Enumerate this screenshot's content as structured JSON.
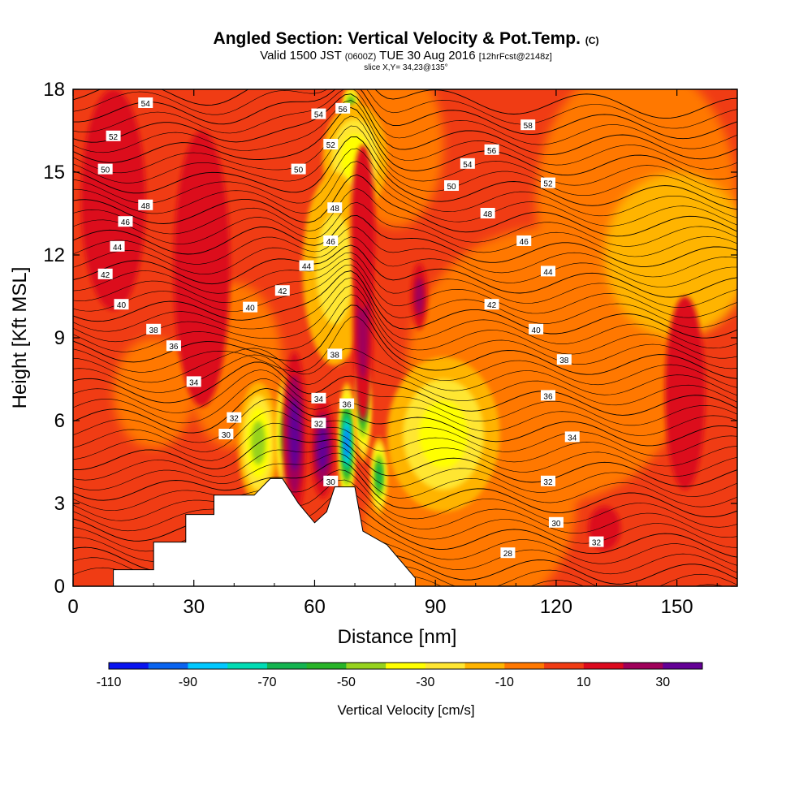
{
  "header": {
    "title": "Angled Section: Vertical Velocity & Pot.Temp.",
    "title_tag": "(C)",
    "valid_main_a": "Valid 1500 JST",
    "valid_small_a": "(0600Z)",
    "valid_main_b": "TUE 30 Aug 2016",
    "valid_small_b": "[12hrFcst@2148z]",
    "slice": "slice X,Y= 34,23@135°"
  },
  "chart_data": {
    "type": "heatmap",
    "xlabel": "Distance [nm]",
    "ylabel": "Height [Kft MSL]",
    "xlim": [
      0,
      165
    ],
    "ylim": [
      0,
      18
    ],
    "x_ticks": [
      0,
      30,
      60,
      90,
      120,
      150
    ],
    "x_tick_labels": [
      "0",
      "30",
      "60",
      "90",
      "120",
      "150"
    ],
    "y_ticks": [
      0,
      3,
      6,
      9,
      12,
      15,
      18
    ],
    "y_tick_labels": [
      "0",
      "3",
      "6",
      "9",
      "12",
      "15",
      "18"
    ],
    "colorbar": {
      "label": "Vertical Velocity [cm/s]",
      "levels": [
        -110,
        -100,
        -90,
        -80,
        -70,
        -60,
        -50,
        -40,
        -30,
        -20,
        -10,
        0,
        10,
        20,
        30,
        40
      ],
      "tick_values": [
        -110,
        -90,
        -70,
        -50,
        -30,
        -10,
        10,
        30
      ],
      "tick_labels": [
        "-110",
        "-90",
        "-70",
        "-50",
        "-30",
        "-10",
        "10",
        "30"
      ],
      "colors": [
        "#0a14f0",
        "#0a64f0",
        "#00c8ff",
        "#00dcb4",
        "#14b450",
        "#28b428",
        "#96d21e",
        "#ffff00",
        "#ffe632",
        "#ffb400",
        "#ff7800",
        "#f03c14",
        "#dc0a1e",
        "#a0005a",
        "#640096"
      ]
    },
    "terrain": [
      [
        10,
        0
      ],
      [
        10,
        0.6
      ],
      [
        20,
        0.6
      ],
      [
        20,
        1.6
      ],
      [
        28,
        1.6
      ],
      [
        28,
        2.6
      ],
      [
        35,
        2.6
      ],
      [
        35,
        3.3
      ],
      [
        45,
        3.3
      ],
      [
        49,
        3.9
      ],
      [
        52,
        3.9
      ],
      [
        56,
        3.0
      ],
      [
        60,
        2.3
      ],
      [
        63,
        2.7
      ],
      [
        65,
        3.6
      ],
      [
        70,
        3.6
      ],
      [
        72,
        2.0
      ],
      [
        78,
        1.5
      ],
      [
        85,
        0.3
      ],
      [
        85,
        0
      ]
    ],
    "downdrafts": [
      [
        46,
        5.2,
        5,
        2.2,
        -40
      ],
      [
        53,
        5.5,
        3,
        2.2,
        -50
      ],
      [
        68,
        5.2,
        2,
        2.2,
        -90
      ],
      [
        72,
        6.5,
        2,
        2.0,
        -60
      ],
      [
        76,
        4.0,
        2,
        1.4,
        -60
      ],
      [
        69,
        17.5,
        2,
        0.6,
        -50
      ],
      [
        92,
        5.5,
        14,
        2.8,
        -30
      ],
      [
        70,
        15.5,
        8,
        2.0,
        -30
      ],
      [
        65,
        11.5,
        8,
        3.5,
        -20
      ]
    ],
    "updrafts": [
      [
        32,
        12.5,
        3,
        2.5,
        30
      ],
      [
        32,
        11.5,
        7,
        5,
        10
      ],
      [
        55,
        5.5,
        3,
        3,
        30
      ],
      [
        62,
        5.0,
        3,
        1.8,
        30
      ],
      [
        72,
        9.5,
        2.5,
        3.5,
        20
      ],
      [
        72,
        13,
        3,
        3,
        10
      ],
      [
        86,
        10.5,
        2,
        1.2,
        20
      ],
      [
        10,
        14,
        8,
        4,
        10
      ],
      [
        132,
        2.1,
        4,
        0.8,
        10
      ],
      [
        152,
        7.0,
        5,
        3.5,
        10
      ]
    ],
    "isentropes": {
      "levels": [
        28,
        30,
        32,
        34,
        36,
        38,
        40,
        42,
        44,
        46,
        48,
        50,
        52,
        54,
        56,
        58
      ],
      "base_heights_kft": [
        1.0,
        2.2,
        3.4,
        4.6,
        5.9,
        7.2,
        8.6,
        10.0,
        11.3,
        12.5,
        13.6,
        14.6,
        15.6,
        16.5,
        17.2,
        17.8
      ],
      "labels": [
        [
          108,
          1.2,
          "28"
        ],
        [
          120,
          2.3,
          "30"
        ],
        [
          38,
          5.5,
          "30"
        ],
        [
          118,
          3.8,
          "32"
        ],
        [
          130,
          1.6,
          "32"
        ],
        [
          124,
          5.4,
          "34"
        ],
        [
          30,
          7.4,
          "34"
        ],
        [
          118,
          6.9,
          "36"
        ],
        [
          25,
          8.7,
          "36"
        ],
        [
          122,
          8.2,
          "38"
        ],
        [
          20,
          9.3,
          "38"
        ],
        [
          115,
          9.3,
          "40"
        ],
        [
          12,
          10.2,
          "40"
        ],
        [
          104,
          10.2,
          "42"
        ],
        [
          8,
          11.3,
          "42"
        ],
        [
          118,
          11.4,
          "44"
        ],
        [
          11,
          12.3,
          "44"
        ],
        [
          112,
          12.5,
          "46"
        ],
        [
          13,
          13.2,
          "46"
        ],
        [
          103,
          13.5,
          "48"
        ],
        [
          18,
          13.8,
          "48"
        ],
        [
          94,
          14.5,
          "50"
        ],
        [
          8,
          15.1,
          "50"
        ],
        [
          118,
          14.6,
          "52"
        ],
        [
          10,
          16.3,
          "52"
        ],
        [
          98,
          15.3,
          "54"
        ],
        [
          18,
          17.5,
          "54"
        ],
        [
          104,
          15.8,
          "56"
        ],
        [
          113,
          16.7,
          "58"
        ],
        [
          44,
          10.1,
          "40"
        ],
        [
          52,
          10.7,
          "42"
        ],
        [
          58,
          11.6,
          "44"
        ],
        [
          64,
          12.5,
          "46"
        ],
        [
          65,
          13.7,
          "48"
        ],
        [
          56,
          15.1,
          "50"
        ],
        [
          64,
          16.0,
          "52"
        ],
        [
          61,
          17.1,
          "54"
        ],
        [
          67,
          17.3,
          "56"
        ],
        [
          65,
          8.4,
          "38"
        ],
        [
          68,
          6.6,
          "36"
        ],
        [
          61,
          6.8,
          "34"
        ],
        [
          61,
          5.9,
          "32"
        ],
        [
          64,
          3.8,
          "30"
        ],
        [
          40,
          6.1,
          "32"
        ]
      ]
    }
  }
}
